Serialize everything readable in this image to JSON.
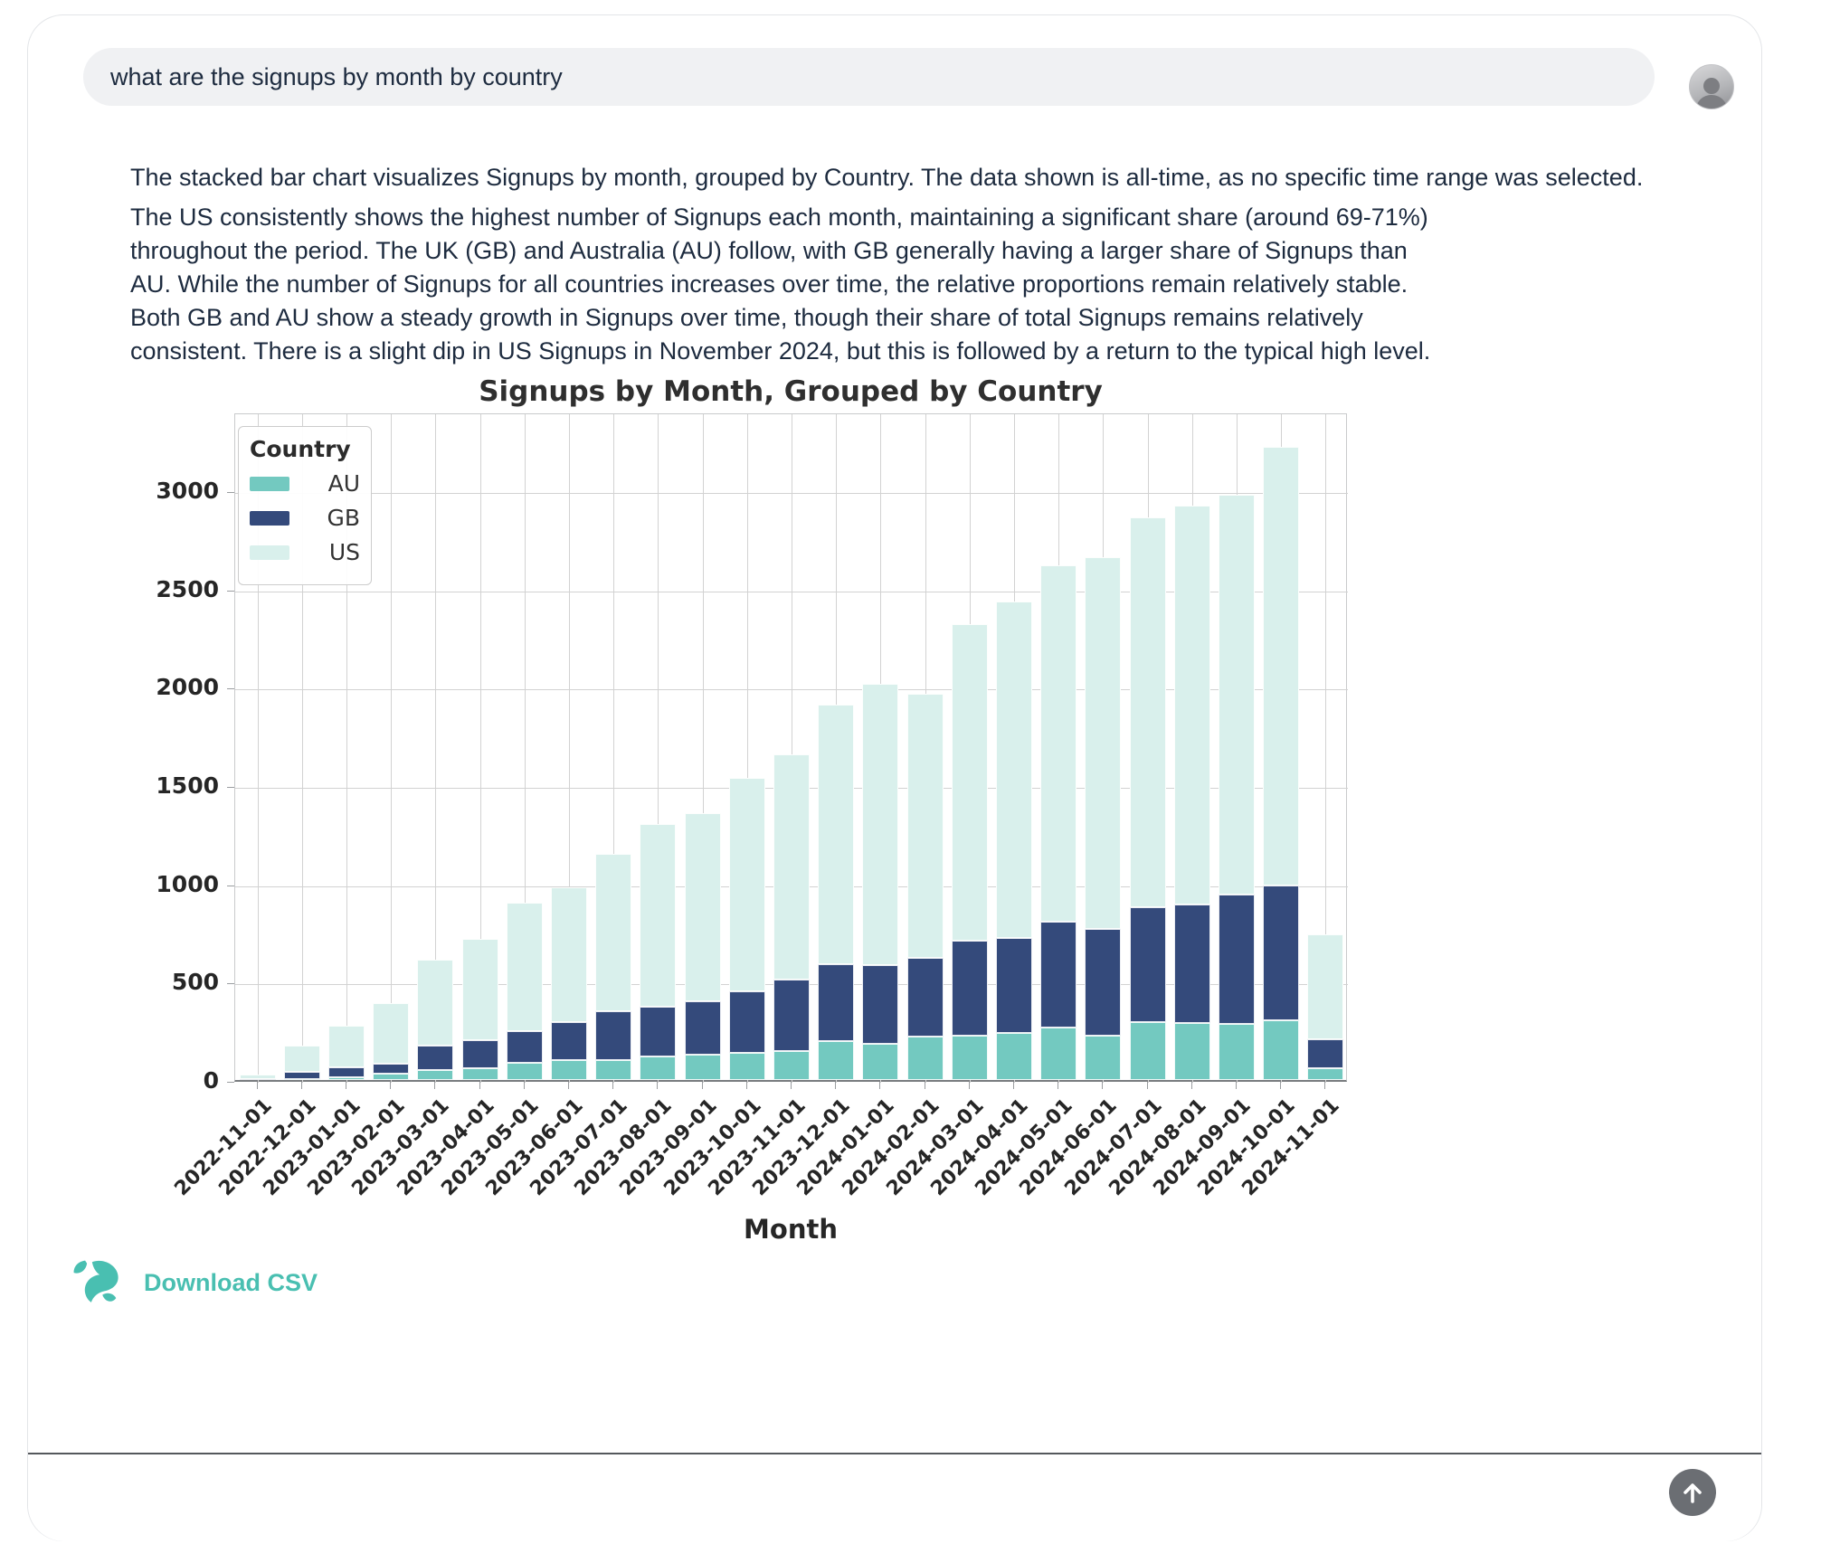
{
  "query": {
    "text": "what are the signups by month by country"
  },
  "response": {
    "paragraph1": "The stacked bar chart visualizes Signups by month, grouped by Country. The data shown is all-time, as no specific time range was selected.",
    "paragraph2": "The US consistently shows the highest number of Signups each month, maintaining a significant share (around 69-71%) throughout the period. The UK (GB) and Australia (AU) follow, with GB generally having a larger share of Signups than AU. While the number of Signups for all countries increases over time, the relative proportions remain relatively stable. Both GB and AU show a steady growth in Signups over time, though their share of total Signups remains relatively consistent. There is a slight dip in US Signups in November 2024, but this is followed by a return to the typical high level."
  },
  "chart_data": {
    "type": "bar",
    "stacked": true,
    "title": "Signups by Month, Grouped by Country",
    "xlabel": "Month",
    "ylabel": "",
    "legend_title": "Country",
    "legend_position": "upper-left",
    "grid": true,
    "ylim": [
      0,
      3400
    ],
    "yticks": [
      0,
      500,
      1000,
      1500,
      2000,
      2500,
      3000
    ],
    "categories": [
      "2022-11-01",
      "2022-12-01",
      "2023-01-01",
      "2023-02-01",
      "2023-03-01",
      "2023-04-01",
      "2023-05-01",
      "2023-06-01",
      "2023-07-01",
      "2023-08-01",
      "2023-09-01",
      "2023-10-01",
      "2023-11-01",
      "2023-12-01",
      "2024-01-01",
      "2024-02-01",
      "2024-03-01",
      "2024-04-01",
      "2024-05-01",
      "2024-06-01",
      "2024-07-01",
      "2024-08-01",
      "2024-09-01",
      "2024-10-01",
      "2024-11-01"
    ],
    "series": [
      {
        "name": "AU",
        "color": "#73c9c0",
        "values": [
          2,
          5,
          15,
          32,
          52,
          60,
          88,
          100,
          103,
          120,
          130,
          136,
          145,
          196,
          182,
          223,
          224,
          241,
          269,
          226,
          296,
          288,
          285,
          304,
          62
        ]
      },
      {
        "name": "GB",
        "color": "#344a7b",
        "values": [
          4,
          38,
          48,
          50,
          124,
          142,
          161,
          195,
          247,
          253,
          272,
          317,
          364,
          392,
          402,
          400,
          484,
          483,
          536,
          543,
          581,
          603,
          657,
          685,
          145
        ]
      },
      {
        "name": "US",
        "color": "#d9f0ec",
        "values": [
          20,
          130,
          213,
          307,
          434,
          518,
          651,
          685,
          800,
          927,
          954,
          1085,
          1147,
          1321,
          1432,
          1343,
          1610,
          1711,
          1814,
          1891,
          1986,
          2030,
          2036,
          2231,
          536
        ]
      }
    ]
  },
  "actions": {
    "download_csv_label": "Download CSV"
  },
  "colors": {
    "accent_teal": "#49bfb1",
    "bar_au": "#73c9c0",
    "bar_gb": "#344a7b",
    "bar_us": "#d9f0ec",
    "bubble_bg": "#f0f1f3",
    "text": "#1d2b3f",
    "send_button": "#6b6e73"
  }
}
